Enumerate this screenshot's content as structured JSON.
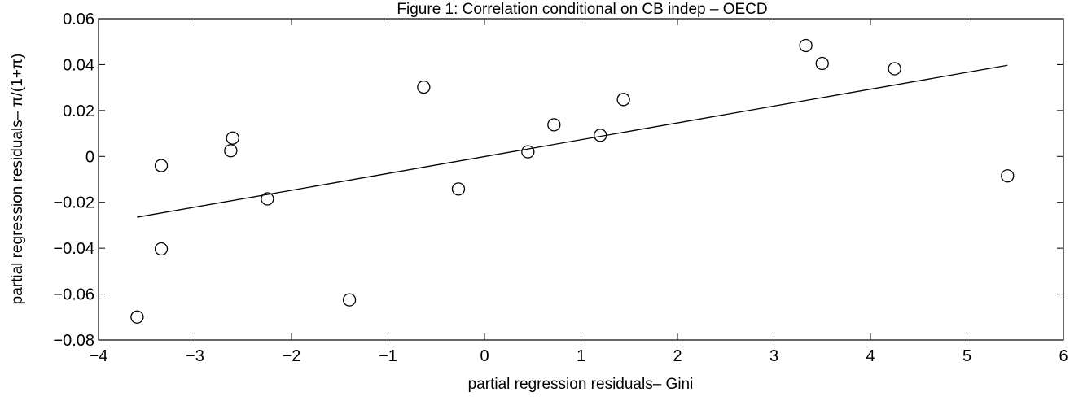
{
  "chart_data": {
    "type": "scatter",
    "title": "Figure 1: Correlation conditional on CB indep – OECD",
    "xlabel": "partial regression residuals– Gini",
    "ylabel": "partial regression residuals– π/(1+π)",
    "xlim": [
      -4,
      6
    ],
    "ylim": [
      -0.08,
      0.06
    ],
    "xticks": [
      -4,
      -3,
      -2,
      -1,
      0,
      1,
      2,
      3,
      4,
      5,
      6
    ],
    "yticks": [
      -0.08,
      -0.06,
      -0.04,
      -0.02,
      0,
      0.02,
      0.04,
      0.06
    ],
    "xtick_labels": [
      "−4",
      "−3",
      "−2",
      "−1",
      "0",
      "1",
      "2",
      "3",
      "4",
      "5",
      "6"
    ],
    "ytick_labels": [
      "−0.08",
      "−0.06",
      "−0.04",
      "−0.02",
      "0",
      "0.02",
      "0.04",
      "0.06"
    ],
    "grid": false,
    "legend": "none",
    "marker": "open-circle",
    "series": [
      {
        "points": [
          {
            "x": -3.6,
            "y": -0.07
          },
          {
            "x": -3.35,
            "y": -0.004
          },
          {
            "x": -3.35,
            "y": -0.0403
          },
          {
            "x": -2.63,
            "y": 0.0025
          },
          {
            "x": -2.61,
            "y": 0.008
          },
          {
            "x": -2.25,
            "y": -0.0185
          },
          {
            "x": -1.4,
            "y": -0.0625
          },
          {
            "x": -0.63,
            "y": 0.0302
          },
          {
            "x": -0.27,
            "y": -0.0142
          },
          {
            "x": 0.45,
            "y": 0.002
          },
          {
            "x": 0.72,
            "y": 0.0138
          },
          {
            "x": 1.2,
            "y": 0.0092
          },
          {
            "x": 1.44,
            "y": 0.0248
          },
          {
            "x": 3.33,
            "y": 0.0483
          },
          {
            "x": 3.5,
            "y": 0.0405
          },
          {
            "x": 4.25,
            "y": 0.0382
          },
          {
            "x": 5.42,
            "y": -0.0085
          }
        ]
      }
    ],
    "fit_line": {
      "x": [
        -3.6,
        5.42
      ],
      "y": [
        -0.0265,
        0.0397
      ]
    }
  }
}
